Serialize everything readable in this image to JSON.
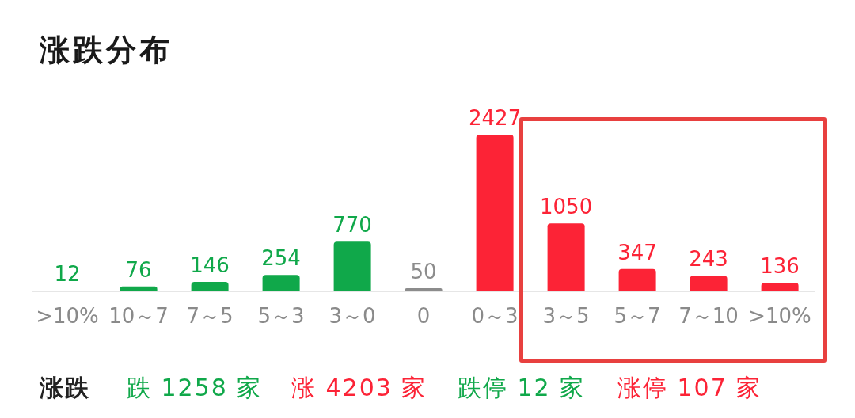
{
  "chart_data": {
    "type": "bar",
    "title": "涨跌分布",
    "categories": [
      ">10%",
      "10～7",
      "7～5",
      "5～3",
      "3～0",
      "0",
      "0～3",
      "3～5",
      "5～7",
      "7～10",
      ">10%"
    ],
    "values": [
      12,
      76,
      146,
      254,
      770,
      50,
      2427,
      1050,
      347,
      243,
      136
    ],
    "colors": [
      "#10a84a",
      "#10a84a",
      "#10a84a",
      "#10a84a",
      "#10a84a",
      "#8c8c8c",
      "#fc2336",
      "#fc2336",
      "#fc2336",
      "#fc2336",
      "#fc2336"
    ],
    "data_labels": true,
    "grid": false,
    "legend": false,
    "annotations": [
      "涨跌",
      "跌 1258 家",
      "涨 4203 家",
      "跌停 12 家",
      "涨停 107 家"
    ]
  }
}
